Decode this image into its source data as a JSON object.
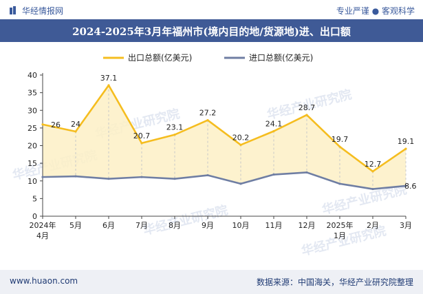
{
  "header": {
    "logo_text": "华经情报网",
    "slogan": "专业严谨 ● 客观科学",
    "title": "2024-2025年3月年福州市(境内目的地/货源地)进、出口额"
  },
  "footer": {
    "website": "www.huaon.com",
    "source": "数据来源：中国海关，华经产业研究院整理"
  },
  "watermark_text": "华经产业研究院",
  "colors": {
    "export_line": "#f5bd1f",
    "export_fill": "#fdf0c6",
    "import_line": "#6f7ea3",
    "title_bar": "#3f5a96"
  },
  "chart_data": {
    "type": "line",
    "categories": [
      "2024年\n4月",
      "5月",
      "6月",
      "7月",
      "8月",
      "9月",
      "10月",
      "11月",
      "12月",
      "2025年\n1月",
      "2月",
      "3月"
    ],
    "series": [
      {
        "name": "出口总额(亿美元)",
        "values": [
          26,
          24,
          37.1,
          20.7,
          23.1,
          27.2,
          20.2,
          24.1,
          28.7,
          19.7,
          12.7,
          19.1
        ],
        "labels": [
          "26",
          "24",
          "37.1",
          "20.7",
          "23.1",
          "27.2",
          "20.2",
          "24.1",
          "28.7",
          "19.7",
          "12.7",
          "19.1"
        ]
      },
      {
        "name": "进口总额(亿美元)",
        "values": [
          11.1,
          11.3,
          10.6,
          11.1,
          10.6,
          11.6,
          9.2,
          11.8,
          12.4,
          9.2,
          7.7,
          8.6
        ],
        "labels": [
          "",
          "",
          "",
          "",
          "",
          "",
          "",
          "",
          "",
          "",
          "",
          "8.6"
        ]
      }
    ],
    "ylim": [
      0,
      40
    ],
    "yticks": [
      0,
      5,
      10,
      15,
      20,
      25,
      30,
      35,
      40
    ],
    "grid": false,
    "legend": "top"
  }
}
